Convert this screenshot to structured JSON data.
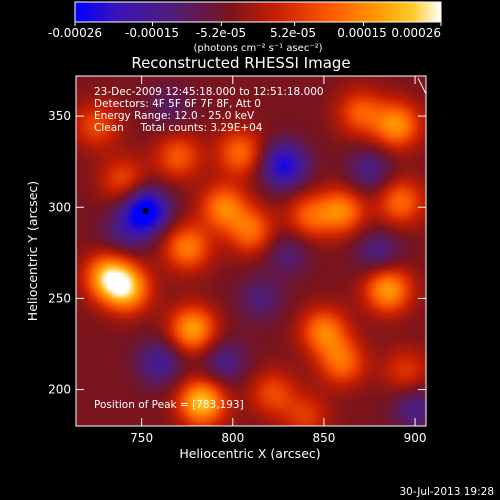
{
  "colorbar": {
    "tick_labels": [
      "-0.00026",
      "-0.00015",
      "-5.2e-05",
      "5.2e-05",
      "0.00015",
      "0.00026"
    ],
    "tick_values": [
      -0.00026,
      -0.00015,
      -5.2e-05,
      5.2e-05,
      0.00015,
      0.00026
    ],
    "range": [
      -0.00026,
      0.00026
    ],
    "units_label": "(photons cm⁻² s⁻¹ asec⁻²)",
    "colors": [
      "#0000ff",
      "#3c14b4",
      "#501e78",
      "#78141e",
      "#c81e00",
      "#ff5a00",
      "#ff9600",
      "#ffc828",
      "#ffffff"
    ]
  },
  "chart_data": {
    "type": "heatmap",
    "title": "Reconstructed RHESSI Image",
    "xlabel": "Heliocentric X (arcsec)",
    "ylabel": "Heliocentric Y (arcsec)",
    "xlim": [
      714,
      906
    ],
    "ylim": [
      180,
      372
    ],
    "x_ticks": [
      750,
      800,
      850,
      900
    ],
    "y_ticks": [
      200,
      250,
      300,
      350
    ],
    "annotations": [
      "23-Dec-2009 12:45:18.000 to 12:51:18.000",
      "Detectors: 4F 5F 6F 7F 8F, Att 0",
      "Energy Range: 12.0 - 25.0 keV",
      "Clean     Total counts: 3.29E+04"
    ],
    "peak_label": "Position of Peak = [783,193]",
    "peak_position": [
      783,
      193
    ],
    "negative_minimum": [
      752,
      298
    ],
    "features": [
      {
        "x": 752,
        "y": 298,
        "value": -0.00026
      },
      {
        "x": 828,
        "y": 323,
        "value": -0.0002
      },
      {
        "x": 783,
        "y": 193,
        "value": 0.00026
      },
      {
        "x": 732,
        "y": 262,
        "value": 0.00024
      },
      {
        "x": 742,
        "y": 255,
        "value": 0.00022
      },
      {
        "x": 778,
        "y": 233,
        "value": 0.00022
      },
      {
        "x": 775,
        "y": 278,
        "value": 0.00018
      },
      {
        "x": 795,
        "y": 300,
        "value": 0.00018
      },
      {
        "x": 804,
        "y": 330,
        "value": 0.00016
      },
      {
        "x": 810,
        "y": 287,
        "value": 0.00016
      },
      {
        "x": 842,
        "y": 295,
        "value": 0.00014
      },
      {
        "x": 860,
        "y": 298,
        "value": 0.00018
      },
      {
        "x": 885,
        "y": 255,
        "value": 0.00022
      },
      {
        "x": 892,
        "y": 303,
        "value": 0.00016
      },
      {
        "x": 890,
        "y": 345,
        "value": 0.0002
      },
      {
        "x": 870,
        "y": 352,
        "value": 0.00014
      },
      {
        "x": 850,
        "y": 232,
        "value": 0.00018
      },
      {
        "x": 860,
        "y": 215,
        "value": 0.00016
      },
      {
        "x": 725,
        "y": 345,
        "value": 0.00012
      },
      {
        "x": 770,
        "y": 328,
        "value": 0.00014
      },
      {
        "x": 740,
        "y": 315,
        "value": 0.00012
      },
      {
        "x": 822,
        "y": 198,
        "value": 0.00012
      },
      {
        "x": 840,
        "y": 185,
        "value": 0.0001
      },
      {
        "x": 895,
        "y": 210,
        "value": 0.0001
      },
      {
        "x": 815,
        "y": 250,
        "value": -8e-05
      },
      {
        "x": 795,
        "y": 215,
        "value": -0.0001
      },
      {
        "x": 760,
        "y": 215,
        "value": -0.00012
      },
      {
        "x": 830,
        "y": 275,
        "value": -8e-05
      },
      {
        "x": 880,
        "y": 275,
        "value": -0.0001
      },
      {
        "x": 875,
        "y": 320,
        "value": -0.0001
      },
      {
        "x": 740,
        "y": 285,
        "value": -8e-05
      },
      {
        "x": 765,
        "y": 355,
        "value": -6e-05
      },
      {
        "x": 900,
        "y": 190,
        "value": -0.0001
      }
    ]
  },
  "footer": {
    "timestamp": "30-Jul-2013 19:28"
  }
}
